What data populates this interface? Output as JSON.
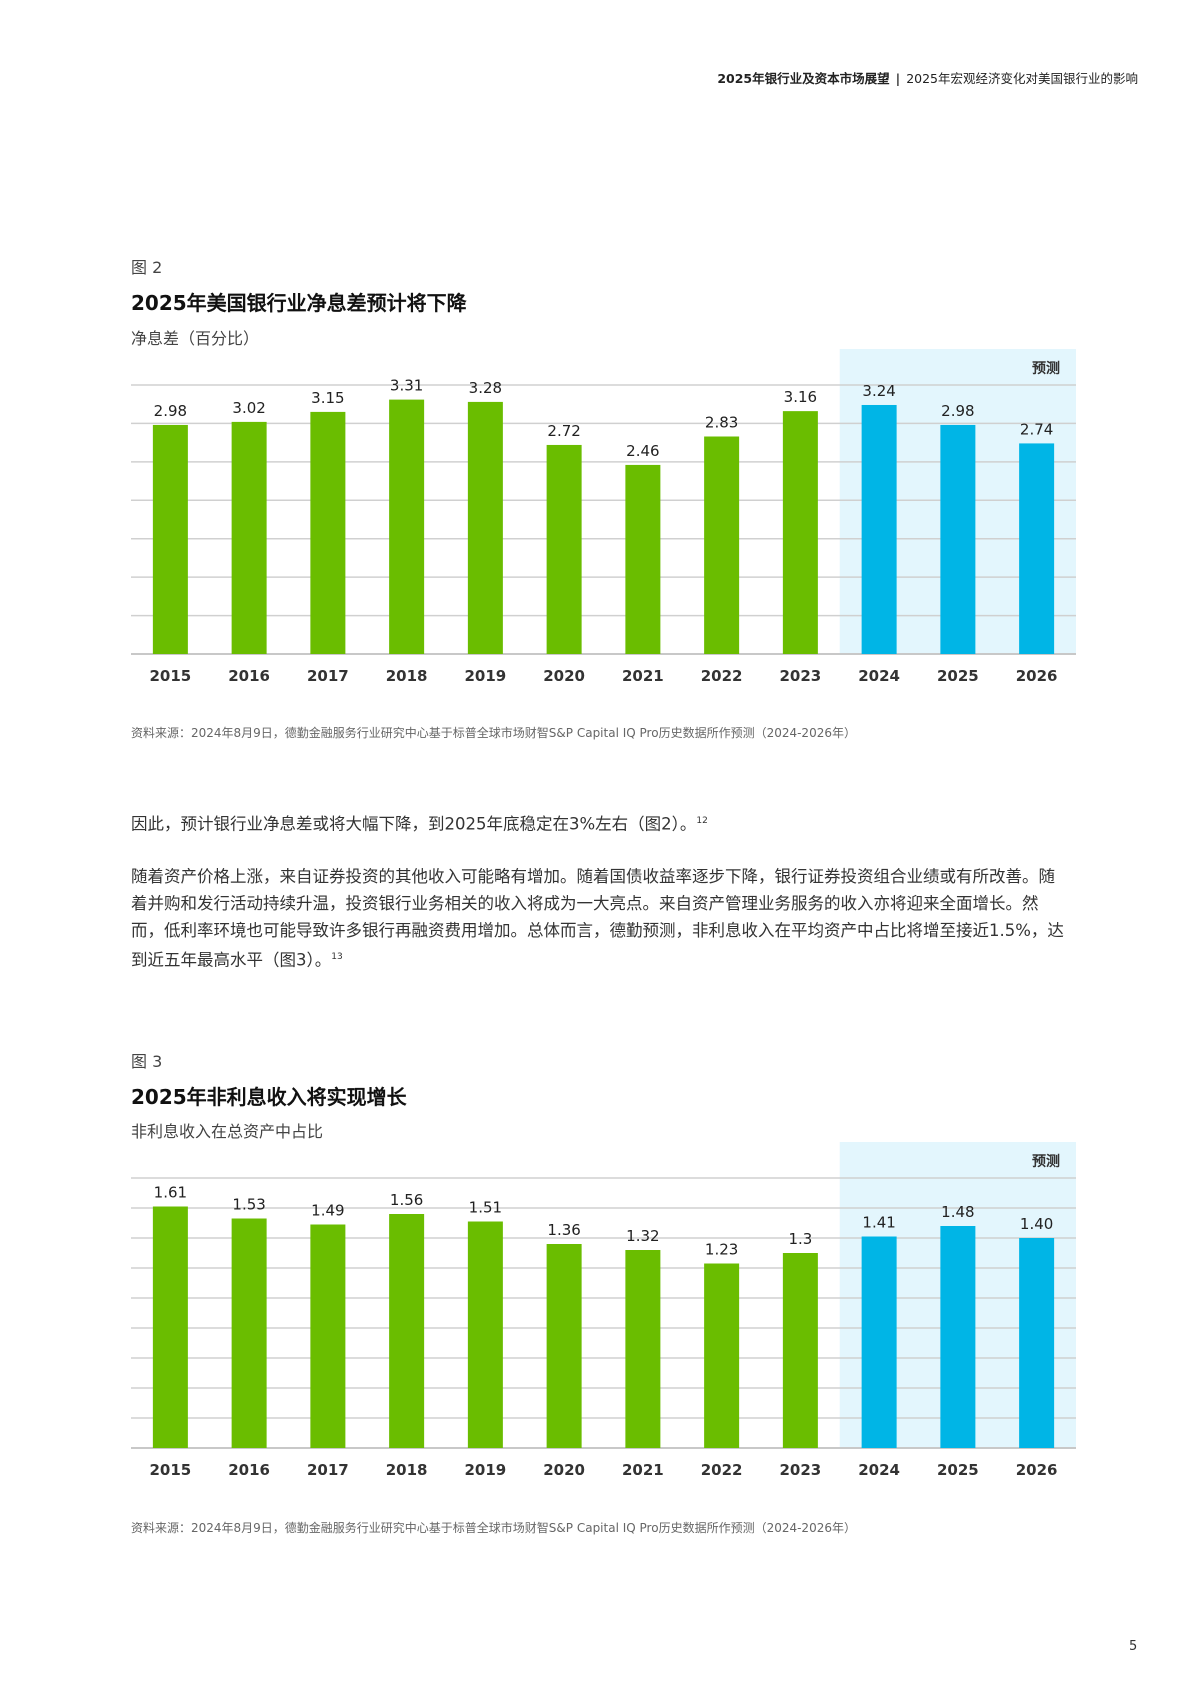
{
  "header": {
    "report": "2025年银行业及资本市场展望",
    "section": "2025年宏观经济变化对美国银行业的影响"
  },
  "figure2": {
    "label": "图 2",
    "title": "2025年美国银行业净息差预计将下降",
    "subtitle": "净息差（百分比）",
    "source": "资料来源：2024年8月9日，德勤金融服务行业研究中心基于标普全球市场财智S&P Capital IQ Pro历史数据所作预测（2024-2026年）"
  },
  "paragraph1": {
    "text": "因此，预计银行业净息差或将大幅下降，到2025年底稳定在3%左右（图2）。",
    "footnote": "12"
  },
  "paragraph2": {
    "text": "随着资产价格上涨，来自证券投资的其他收入可能略有增加。随着国债收益率逐步下降，银行证券投资组合业绩或有所改善。随着并购和发行活动持续升温，投资银行业务相关的收入将成为一大亮点。来自资产管理业务服务的收入亦将迎来全面增长。然而，低利率环境也可能导致许多银行再融资费用增加。总体而言，德勤预测，非利息收入在平均资产中占比将增至接近1.5%，达到近五年最高水平（图3）。",
    "footnote": "13"
  },
  "figure3": {
    "label": "图 3",
    "title": "2025年非利息收入将实现增长",
    "subtitle": "非利息收入在总资产中占比",
    "source": "资料来源：2024年8月9日，德勤金融服务行业研究中心基于标普全球市场财智S&P Capital IQ Pro历史数据所作预测（2024-2026年）"
  },
  "page_number": "5",
  "colors": {
    "actual": "#6ABD00",
    "forecast": "#00B5E6",
    "forecast_band": "#E3F6FD",
    "grid": "#D0D0D0"
  },
  "chart_data": [
    {
      "type": "bar",
      "title": "2025年美国银行业净息差预计将下降",
      "ylabel": "净息差（百分比）",
      "categories": [
        "2015",
        "2016",
        "2017",
        "2018",
        "2019",
        "2020",
        "2021",
        "2022",
        "2023",
        "2024",
        "2025",
        "2026"
      ],
      "values": [
        2.98,
        3.02,
        3.15,
        3.31,
        3.28,
        2.72,
        2.46,
        2.83,
        3.16,
        3.24,
        2.98,
        2.74
      ],
      "labels": [
        "2.98",
        "3.02",
        "3.15",
        "3.31",
        "3.28",
        "2.72",
        "2.46",
        "2.83",
        "3.16",
        "3.24",
        "2.98",
        "2.74"
      ],
      "forecast_from_index": 9,
      "forecast_label": "预测",
      "ylim": [
        0,
        3.5
      ],
      "grid_step": 0.5,
      "grid": true
    },
    {
      "type": "bar",
      "title": "2025年非利息收入将实现增长",
      "ylabel": "非利息收入在总资产中占比",
      "categories": [
        "2015",
        "2016",
        "2017",
        "2018",
        "2019",
        "2020",
        "2021",
        "2022",
        "2023",
        "2024",
        "2025",
        "2026"
      ],
      "values": [
        1.61,
        1.53,
        1.49,
        1.56,
        1.51,
        1.36,
        1.32,
        1.23,
        1.3,
        1.41,
        1.48,
        1.4
      ],
      "labels": [
        "1.61",
        "1.53",
        "1.49",
        "1.56",
        "1.51",
        "1.36",
        "1.32",
        "1.23",
        "1.3",
        "1.41",
        "1.48",
        "1.40"
      ],
      "forecast_from_index": 9,
      "forecast_label": "预测",
      "ylim": [
        0,
        1.8
      ],
      "grid_step": 0.2,
      "grid": true
    }
  ]
}
